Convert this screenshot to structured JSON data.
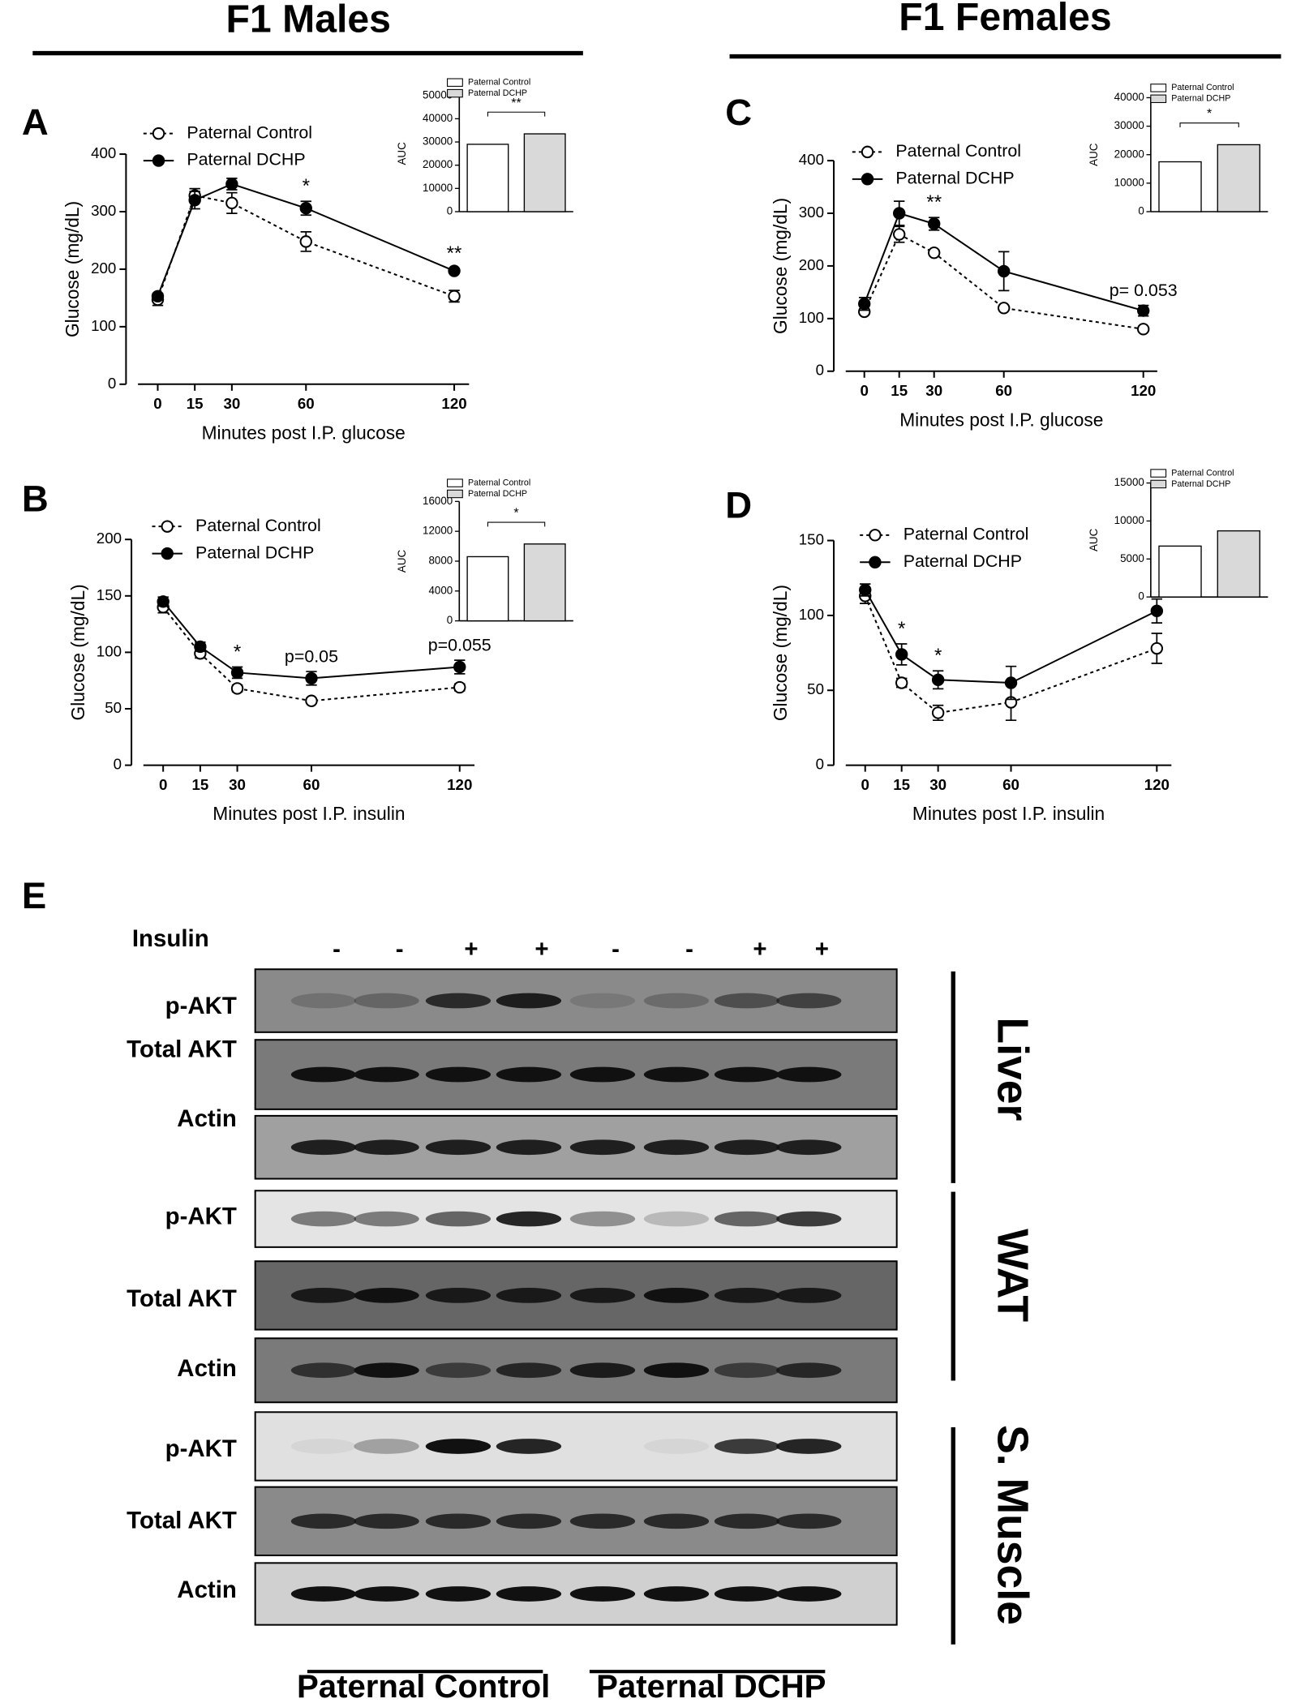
{
  "headers": {
    "males": "F1 Males",
    "females": "F1 Females"
  },
  "panels": [
    "A",
    "B",
    "C",
    "D",
    "E"
  ],
  "chart_data": [
    {
      "type": "line",
      "xlabel": "Minutes post I.P. glucose",
      "ylabel": "Glucose (mg/dL)",
      "x": [
        0,
        15,
        30,
        60,
        120
      ],
      "xlim": [
        -8,
        126
      ],
      "xticks": [
        0,
        15,
        30,
        60,
        120
      ],
      "ylim": [
        0,
        400
      ],
      "yticks": [
        0,
        100,
        200,
        300,
        400
      ],
      "series": [
        {
          "name": "Paternal Control",
          "color": "#000000",
          "marker": "open",
          "line": "dotted",
          "values": [
            147,
            328,
            315,
            248,
            153
          ],
          "errors": [
            10,
            12,
            18,
            17,
            10
          ]
        },
        {
          "name": "Paternal DCHP",
          "color": "#000000",
          "marker": "filled",
          "line": "solid",
          "values": [
            153,
            320,
            348,
            306,
            197
          ],
          "errors": [
            5,
            15,
            10,
            12,
            4
          ]
        }
      ],
      "annotations": [
        {
          "text": "*",
          "x": 60
        },
        {
          "text": "**",
          "x": 120
        }
      ]
    },
    {
      "type": "bar",
      "ylabel": "AUC",
      "ylim": [
        0,
        50000
      ],
      "yticks": [
        0,
        10000,
        20000,
        30000,
        40000,
        50000
      ],
      "series": [
        {
          "name": "Paternal Control",
          "color": "#ffffff",
          "values": [
            29000
          ]
        },
        {
          "name": "Paternal DCHP",
          "color": "#d9d9d9",
          "values": [
            33500
          ]
        }
      ],
      "annotations": [
        {
          "text": "**"
        }
      ]
    },
    {
      "type": "line",
      "xlabel": "Minutes post I.P. insulin",
      "ylabel": "Glucose (mg/dL)",
      "x": [
        0,
        15,
        30,
        60,
        120
      ],
      "xlim": [
        -8,
        126
      ],
      "xticks": [
        0,
        15,
        30,
        60,
        120
      ],
      "ylim": [
        0,
        200
      ],
      "yticks": [
        0,
        50,
        100,
        150,
        200
      ],
      "series": [
        {
          "name": "Paternal Control",
          "color": "#000000",
          "marker": "open",
          "line": "dotted",
          "values": [
            140,
            99,
            68,
            57,
            69
          ],
          "errors": [
            5,
            4,
            3,
            2,
            3
          ]
        },
        {
          "name": "Paternal DCHP",
          "color": "#000000",
          "marker": "filled",
          "line": "solid",
          "values": [
            145,
            105,
            82,
            77,
            87
          ],
          "errors": [
            4,
            4,
            5,
            6,
            6
          ]
        }
      ],
      "annotations": [
        {
          "text": "*",
          "x": 30
        },
        {
          "text": "p=0.05",
          "x": 60
        },
        {
          "text": "p=0.055",
          "x": 120
        }
      ]
    },
    {
      "type": "bar",
      "ylabel": "AUC",
      "ylim": [
        0,
        16000
      ],
      "yticks": [
        0,
        4000,
        8000,
        12000,
        16000
      ],
      "series": [
        {
          "name": "Paternal Control",
          "color": "#ffffff",
          "values": [
            8600
          ]
        },
        {
          "name": "Paternal DCHP",
          "color": "#d9d9d9",
          "values": [
            10300
          ]
        }
      ],
      "annotations": [
        {
          "text": "*"
        }
      ]
    },
    {
      "type": "line",
      "xlabel": "Minutes post I.P. glucose",
      "ylabel": "Glucose (mg/dL)",
      "x": [
        0,
        15,
        30,
        60,
        120
      ],
      "xlim": [
        -8,
        126
      ],
      "xticks": [
        0,
        15,
        30,
        60,
        120
      ],
      "ylim": [
        0,
        400
      ],
      "yticks": [
        0,
        100,
        200,
        300,
        400
      ],
      "series": [
        {
          "name": "Paternal Control",
          "color": "#000000",
          "marker": "open",
          "line": "dotted",
          "values": [
            113,
            260,
            225,
            120,
            80
          ],
          "errors": [
            5,
            15,
            5,
            4,
            4
          ]
        },
        {
          "name": "Paternal DCHP",
          "color": "#000000",
          "marker": "filled",
          "line": "solid",
          "values": [
            128,
            300,
            280,
            190,
            115
          ],
          "errors": [
            12,
            23,
            12,
            37,
            10
          ]
        }
      ],
      "annotations": [
        {
          "text": "**",
          "x": 30
        },
        {
          "text": "p= 0.053",
          "x": 120
        }
      ]
    },
    {
      "type": "bar",
      "ylabel": "AUC",
      "ylim": [
        0,
        40000
      ],
      "yticks": [
        0,
        10000,
        20000,
        30000,
        40000
      ],
      "series": [
        {
          "name": "Paternal Control",
          "color": "#ffffff",
          "values": [
            17500
          ]
        },
        {
          "name": "Paternal DCHP",
          "color": "#d9d9d9",
          "values": [
            23500
          ]
        }
      ],
      "annotations": [
        {
          "text": "*"
        }
      ]
    },
    {
      "type": "line",
      "xlabel": "Minutes post I.P. insulin",
      "ylabel": "Glucose (mg/dL)",
      "x": [
        0,
        15,
        30,
        60,
        120
      ],
      "xlim": [
        -8,
        126
      ],
      "xticks": [
        0,
        15,
        30,
        60,
        120
      ],
      "ylim": [
        0,
        150
      ],
      "yticks": [
        0,
        50,
        100,
        150
      ],
      "series": [
        {
          "name": "Paternal Control",
          "color": "#000000",
          "marker": "open",
          "line": "dotted",
          "values": [
            113,
            55,
            35,
            42,
            78
          ],
          "errors": [
            5,
            3,
            5,
            12,
            10
          ]
        },
        {
          "name": "Paternal DCHP",
          "color": "#000000",
          "marker": "filled",
          "line": "solid",
          "values": [
            117,
            74,
            57,
            55,
            103
          ],
          "errors": [
            4,
            7,
            6,
            11,
            8
          ]
        }
      ],
      "annotations": [
        {
          "text": "*",
          "x": 15
        },
        {
          "text": "*",
          "x": 30
        }
      ]
    },
    {
      "type": "bar",
      "ylabel": "AUC",
      "ylim": [
        0,
        15000
      ],
      "yticks": [
        0,
        5000,
        10000,
        15000
      ],
      "series": [
        {
          "name": "Paternal Control",
          "color": "#ffffff",
          "values": [
            6700
          ]
        },
        {
          "name": "Paternal DCHP",
          "color": "#d9d9d9",
          "values": [
            8700
          ]
        }
      ],
      "annotations": []
    }
  ],
  "blot": {
    "insulin_label": "Insulin",
    "insulin": [
      "-",
      "-",
      "+",
      "+",
      "-",
      "-",
      "+",
      "+"
    ],
    "rows": [
      "p-AKT",
      "Total AKT",
      "Actin",
      "p-AKT",
      "Total AKT",
      "Actin",
      "p-AKT",
      "Total AKT",
      "Actin"
    ],
    "tissues": [
      "Liver",
      "WAT",
      "S. Muscle"
    ],
    "groups": [
      "Paternal Control",
      "Paternal DCHP"
    ]
  }
}
